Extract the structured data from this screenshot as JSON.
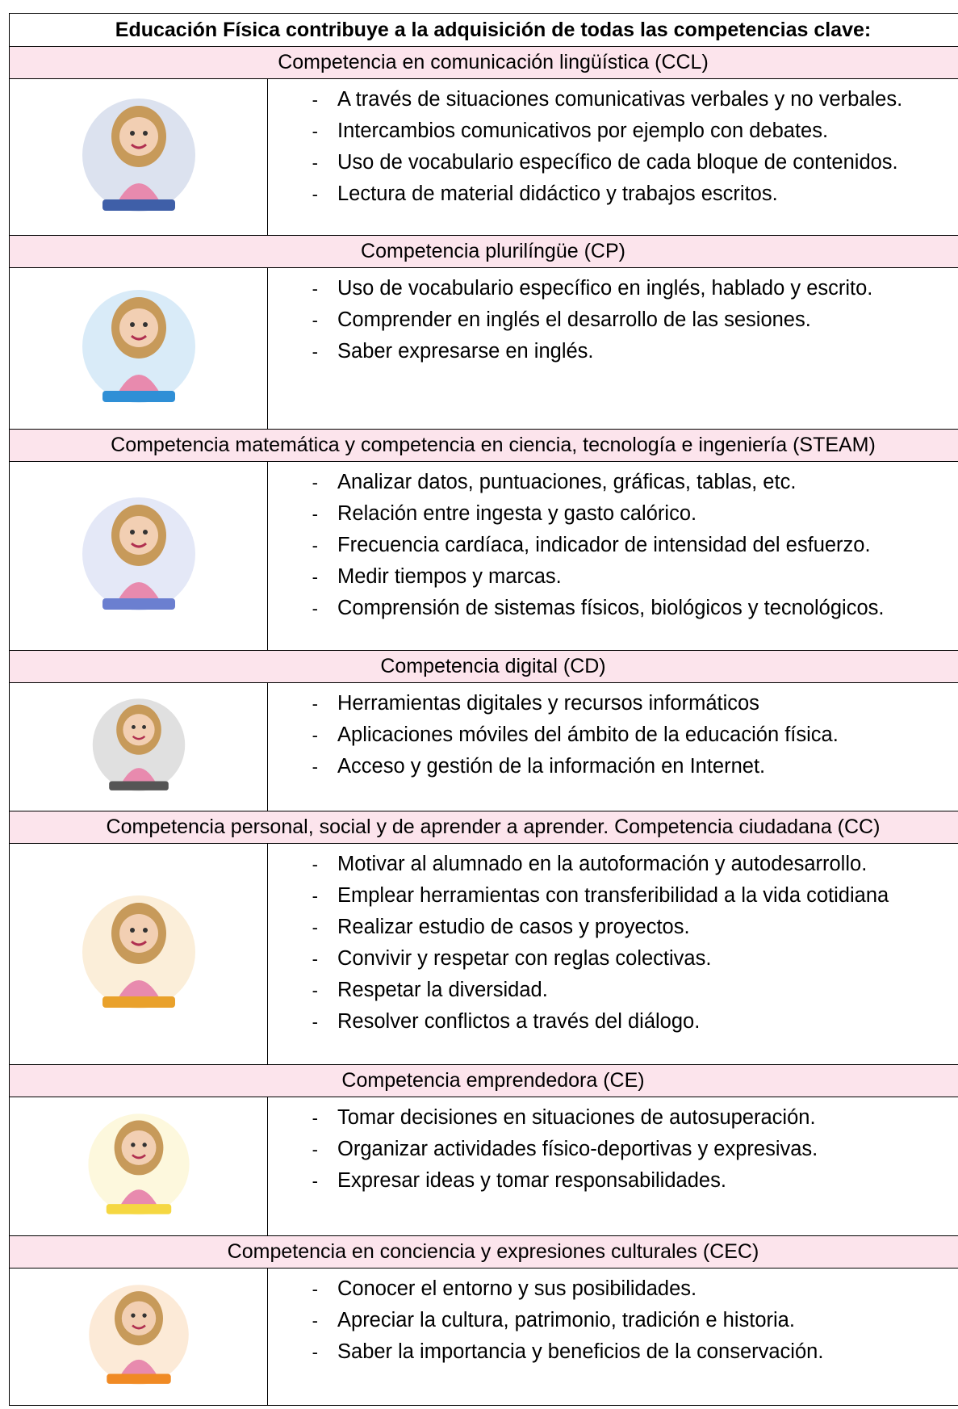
{
  "title": "Educación Física contribuye a la adquisición de todas las competencias clave:",
  "sections": [
    {
      "heading": "Competencia en comunicación lingüística (CCL)",
      "items": [
        "A través de situaciones comunicativas verbales y no verbales.",
        "Intercambios comunicativos por ejemplo con debates.",
        "Uso de vocabulario específico de cada bloque de contenidos.",
        "Lectura de material didáctico y trabajos escritos."
      ]
    },
    {
      "heading": "Competencia plurilíngüe (CP)",
      "items": [
        "Uso de vocabulario específico en inglés, hablado y escrito.",
        "Comprender en inglés el desarrollo de las sesiones.",
        "Saber expresarse en inglés."
      ]
    },
    {
      "heading": "Competencia matemática y competencia en ciencia, tecnología e ingeniería (STEAM)",
      "items": [
        "Analizar datos, puntuaciones, gráficas, tablas, etc.",
        "Relación entre ingesta y gasto calórico.",
        "Frecuencia cardíaca, indicador de intensidad del esfuerzo.",
        "Medir tiempos y marcas.",
        "Comprensión de sistemas físicos, biológicos y tecnológicos."
      ]
    },
    {
      "heading": "Competencia digital (CD)",
      "items": [
        "Herramientas digitales y recursos informáticos",
        "Aplicaciones móviles del ámbito de la educación física.",
        "Acceso y gestión de la información en Internet."
      ]
    },
    {
      "heading": "Competencia personal, social y de aprender a aprender. Competencia ciudadana (CC)",
      "items": [
        "Motivar al alumnado en la autoformación y autodesarrollo.",
        "Emplear herramientas con transferibilidad a la vida cotidiana",
        "Realizar estudio de casos y proyectos.",
        "Convivir y respetar con reglas colectivas.",
        "Respetar la diversidad.",
        "Resolver conflictos a través del diálogo."
      ]
    },
    {
      "heading": "Competencia emprendedora (CE)",
      "items": [
        "Tomar decisiones en situaciones de autosuperación.",
        "Organizar actividades físico-deportivas y expresivas.",
        "Expresar ideas y tomar responsabilidades."
      ]
    },
    {
      "heading": "Competencia en conciencia y expresiones culturales (CEC)",
      "items": [
        "Conocer el entorno y sus posibilidades.",
        "Apreciar la cultura, patrimonio, tradición e historia.",
        "Saber la importancia y beneficios de la conservación."
      ]
    }
  ]
}
